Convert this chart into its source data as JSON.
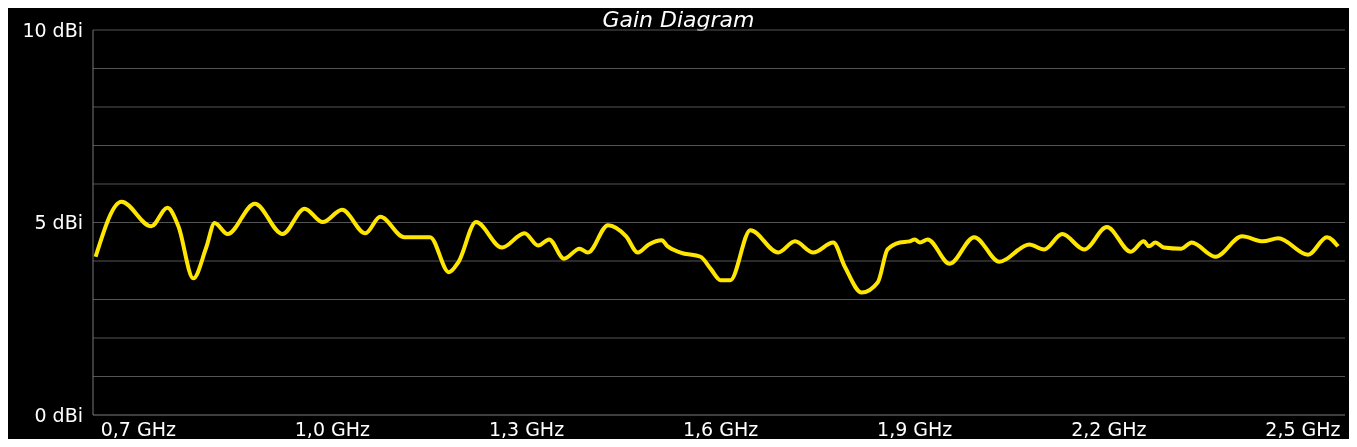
{
  "chart_data": {
    "type": "line",
    "title": "Gain Diagram",
    "x": [
      0.634,
      0.674,
      0.72,
      0.745,
      0.762,
      0.785,
      0.805,
      0.818,
      0.838,
      0.88,
      0.923,
      0.957,
      0.985,
      1.015,
      1.051,
      1.074,
      1.111,
      1.151,
      1.18,
      1.195,
      1.222,
      1.262,
      1.297,
      1.318,
      1.335,
      1.358,
      1.382,
      1.395,
      1.426,
      1.454,
      1.472,
      1.489,
      1.509,
      1.518,
      1.538,
      1.569,
      1.585,
      1.6,
      1.615,
      1.646,
      1.689,
      1.715,
      1.743,
      1.774,
      1.792,
      1.818,
      1.843,
      1.858,
      1.877,
      1.892,
      1.9,
      1.908,
      1.92,
      1.954,
      1.992,
      2.031,
      2.077,
      2.1,
      2.128,
      2.162,
      2.197,
      2.234,
      2.254,
      2.262,
      2.272,
      2.285,
      2.312,
      2.328,
      2.365,
      2.406,
      2.438,
      2.462,
      2.508,
      2.537,
      2.554
    ],
    "series": [
      {
        "color": "#ffe600",
        "values": [
          4.11,
          5.54,
          4.9,
          5.38,
          4.9,
          3.55,
          4.35,
          4.99,
          4.7,
          5.49,
          4.7,
          5.36,
          5.01,
          5.33,
          4.72,
          5.15,
          4.62,
          4.62,
          3.71,
          3.98,
          5.01,
          4.35,
          4.72,
          4.4,
          4.56,
          4.06,
          4.32,
          4.22,
          4.93,
          4.64,
          4.22,
          4.43,
          4.54,
          4.38,
          4.22,
          4.11,
          3.79,
          3.5,
          3.5,
          4.8,
          4.22,
          4.51,
          4.22,
          4.48,
          3.85,
          3.18,
          3.45,
          4.3,
          4.48,
          4.51,
          4.56,
          4.48,
          4.56,
          3.93,
          4.62,
          3.98,
          4.43,
          4.3,
          4.7,
          4.3,
          4.88,
          4.24,
          4.51,
          4.38,
          4.48,
          4.35,
          4.32,
          4.48,
          4.11,
          4.64,
          4.51,
          4.59,
          4.16,
          4.62,
          4.38
        ]
      }
    ],
    "xlim": [
      0.63,
      2.565
    ],
    "xticks": [
      {
        "value": 0.7,
        "label": "0,7 GHz"
      },
      {
        "value": 1.0,
        "label": "1,0 GHz"
      },
      {
        "value": 1.3,
        "label": "1,3 GHz"
      },
      {
        "value": 1.6,
        "label": "1,6 GHz"
      },
      {
        "value": 1.9,
        "label": "1,9 GHz"
      },
      {
        "value": 2.2,
        "label": "2,2 GHz"
      },
      {
        "value": 2.5,
        "label": "2,5 GHz"
      }
    ],
    "ylim": [
      0,
      10
    ],
    "yticks": [
      {
        "value": 0,
        "label": "0 dBi"
      },
      {
        "value": 1,
        "label": null
      },
      {
        "value": 2,
        "label": null
      },
      {
        "value": 3,
        "label": null
      },
      {
        "value": 4,
        "label": null
      },
      {
        "value": 5,
        "label": "5 dBi"
      },
      {
        "value": 6,
        "label": null
      },
      {
        "value": 7,
        "label": null
      },
      {
        "value": 8,
        "label": null
      },
      {
        "value": 9,
        "label": null
      },
      {
        "value": 10,
        "label": "10 dBi"
      }
    ],
    "grid": "y",
    "legend": false,
    "marker": "none",
    "line_style": "solid"
  }
}
